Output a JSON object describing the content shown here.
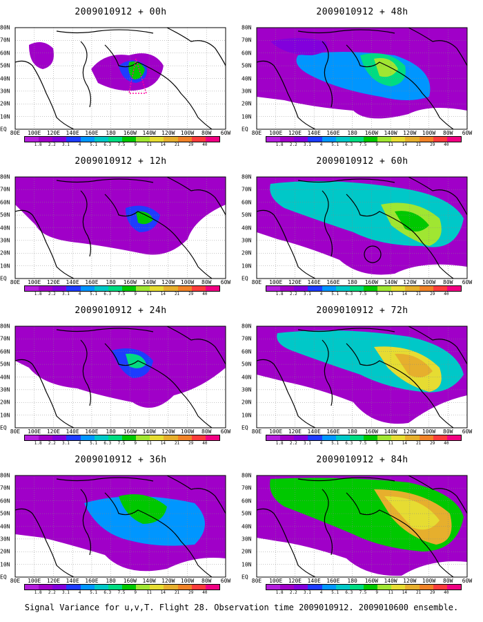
{
  "caption": "Signal Variance for u,v,T. Flight 28. Observation time 2009010912. 2009010600 ensemble.",
  "lat_labels": [
    "80N",
    "70N",
    "60N",
    "50N",
    "40N",
    "30N",
    "20N",
    "10N",
    "EQ"
  ],
  "lon_labels": [
    "80E",
    "100E",
    "120E",
    "140E",
    "160E",
    "180",
    "160W",
    "140W",
    "120W",
    "100W",
    "80W",
    "60W"
  ],
  "colorbar": {
    "labels": [
      "1.8",
      "2.2",
      "3.1",
      "4",
      "5.1",
      "6.3",
      "7.5",
      "9",
      "11",
      "14",
      "21",
      "29",
      "40"
    ],
    "colors": [
      "#a000c8",
      "#8200dc",
      "#1e3cff",
      "#0096ff",
      "#00c8c8",
      "#00dc82",
      "#00c800",
      "#a0e632",
      "#e6dc32",
      "#e6af2d",
      "#f08228",
      "#fa3c3c",
      "#f00082"
    ]
  },
  "panels": [
    {
      "title": "2009010912 + 00h"
    },
    {
      "title": "2009010912 + 48h"
    },
    {
      "title": "2009010912 + 12h"
    },
    {
      "title": "2009010912 + 60h"
    },
    {
      "title": "2009010912 + 24h"
    },
    {
      "title": "2009010912 + 72h"
    },
    {
      "title": "2009010912 + 36h"
    },
    {
      "title": "2009010912 + 84h"
    }
  ]
}
